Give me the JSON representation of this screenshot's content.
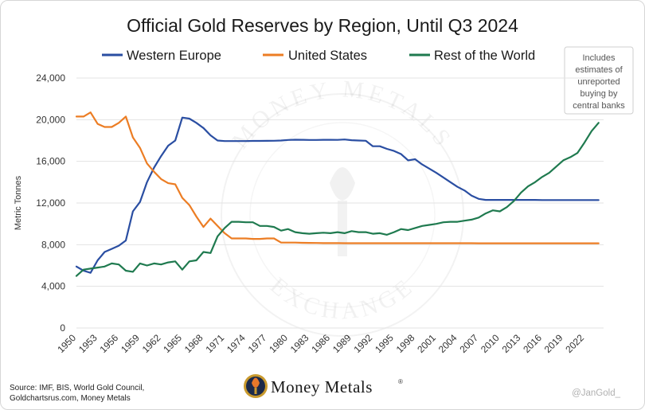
{
  "chart_data": {
    "type": "line",
    "title": "Official Gold Reserves by Region, Until Q3 2024",
    "ylabel": "Metric Tonnes",
    "xlabel": "",
    "ylim": [
      0,
      24000
    ],
    "yticks": [
      "0",
      "4,000",
      "8,000",
      "12,000",
      "16,000",
      "20,000",
      "24,000"
    ],
    "ytick_values": [
      0,
      4000,
      8000,
      12000,
      16000,
      20000,
      24000
    ],
    "xticks": [
      "1950",
      "1953",
      "1956",
      "1959",
      "1962",
      "1965",
      "1968",
      "1971",
      "1974",
      "1977",
      "1980",
      "1983",
      "1986",
      "1989",
      "1992",
      "1995",
      "1998",
      "2001",
      "2004",
      "2007",
      "2010",
      "2013",
      "2016",
      "2019",
      "2022"
    ],
    "xlim": [
      1950,
      2024
    ],
    "grid": "horizontal",
    "legend_position": "top",
    "x": [
      1950,
      1951,
      1952,
      1953,
      1954,
      1955,
      1956,
      1957,
      1958,
      1959,
      1960,
      1961,
      1962,
      1963,
      1964,
      1965,
      1966,
      1967,
      1968,
      1969,
      1970,
      1971,
      1972,
      1973,
      1974,
      1975,
      1976,
      1977,
      1978,
      1979,
      1980,
      1981,
      1982,
      1983,
      1984,
      1985,
      1986,
      1987,
      1988,
      1989,
      1990,
      1991,
      1992,
      1993,
      1994,
      1995,
      1996,
      1997,
      1998,
      1999,
      2000,
      2001,
      2002,
      2003,
      2004,
      2005,
      2006,
      2007,
      2008,
      2009,
      2010,
      2011,
      2012,
      2013,
      2014,
      2015,
      2016,
      2017,
      2018,
      2019,
      2020,
      2021,
      2022,
      2023,
      2024
    ],
    "series": [
      {
        "name": "Western Europe",
        "color": "#2a4ea2",
        "values": [
          5900,
          5500,
          5300,
          6500,
          7300,
          7600,
          7900,
          8400,
          11200,
          12100,
          14000,
          15400,
          16500,
          17500,
          18000,
          20200,
          20100,
          19700,
          19200,
          18500,
          18000,
          17950,
          17950,
          17950,
          17950,
          17960,
          17960,
          17970,
          17980,
          18000,
          18050,
          18080,
          18070,
          18050,
          18050,
          18070,
          18070,
          18060,
          18100,
          18030,
          18000,
          17980,
          17450,
          17450,
          17200,
          17000,
          16700,
          16100,
          16200,
          15700,
          15300,
          14900,
          14450,
          14000,
          13550,
          13200,
          12700,
          12400,
          12300,
          12300,
          12300,
          12300,
          12300,
          12300,
          12300,
          12300,
          12280,
          12280,
          12280,
          12280,
          12280,
          12280,
          12280,
          12280,
          12280
        ]
      },
      {
        "name": "United States",
        "color": "#ec7d24",
        "values": [
          20300,
          20300,
          20700,
          19600,
          19300,
          19300,
          19700,
          20300,
          18300,
          17300,
          15800,
          15000,
          14300,
          13900,
          13800,
          12500,
          11800,
          10700,
          9700,
          10500,
          9800,
          9100,
          8600,
          8600,
          8600,
          8550,
          8550,
          8600,
          8600,
          8200,
          8200,
          8200,
          8180,
          8170,
          8160,
          8150,
          8150,
          8150,
          8140,
          8140,
          8140,
          8140,
          8140,
          8140,
          8140,
          8140,
          8140,
          8140,
          8140,
          8140,
          8140,
          8140,
          8140,
          8140,
          8140,
          8140,
          8140,
          8130,
          8130,
          8130,
          8130,
          8130,
          8130,
          8130,
          8130,
          8130,
          8130,
          8130,
          8130,
          8130,
          8130,
          8130,
          8130,
          8130,
          8130
        ]
      },
      {
        "name": "Rest of the World",
        "color": "#1f7a4f",
        "values": [
          5000,
          5600,
          5700,
          5800,
          5900,
          6200,
          6100,
          5500,
          5400,
          6200,
          6000,
          6200,
          6100,
          6300,
          6400,
          5600,
          6400,
          6500,
          7300,
          7200,
          8800,
          9600,
          10200,
          10200,
          10150,
          10150,
          9800,
          9800,
          9700,
          9350,
          9500,
          9200,
          9100,
          9050,
          9100,
          9150,
          9100,
          9200,
          9100,
          9300,
          9200,
          9200,
          9050,
          9100,
          8950,
          9200,
          9500,
          9400,
          9600,
          9800,
          9900,
          10000,
          10150,
          10200,
          10200,
          10300,
          10400,
          10600,
          11000,
          11300,
          11200,
          11600,
          12200,
          13000,
          13600,
          14000,
          14500,
          14900,
          15500,
          16100,
          16400,
          16800,
          17800,
          18900,
          19700
        ]
      }
    ]
  },
  "note": {
    "lines": [
      "Includes",
      "estimates of",
      "unreported",
      "buying by",
      "central banks"
    ]
  },
  "source": {
    "lines": [
      "Source: IMF, BIS, World Gold Council,",
      "Goldchartsrus.com, Money Metals"
    ]
  },
  "brand": {
    "name": "Money Metals",
    "registered": "®"
  },
  "handle": "@JanGold_",
  "watermark": {
    "top_text": "MONEY METALS",
    "bottom_text": "EXCHANGE"
  }
}
